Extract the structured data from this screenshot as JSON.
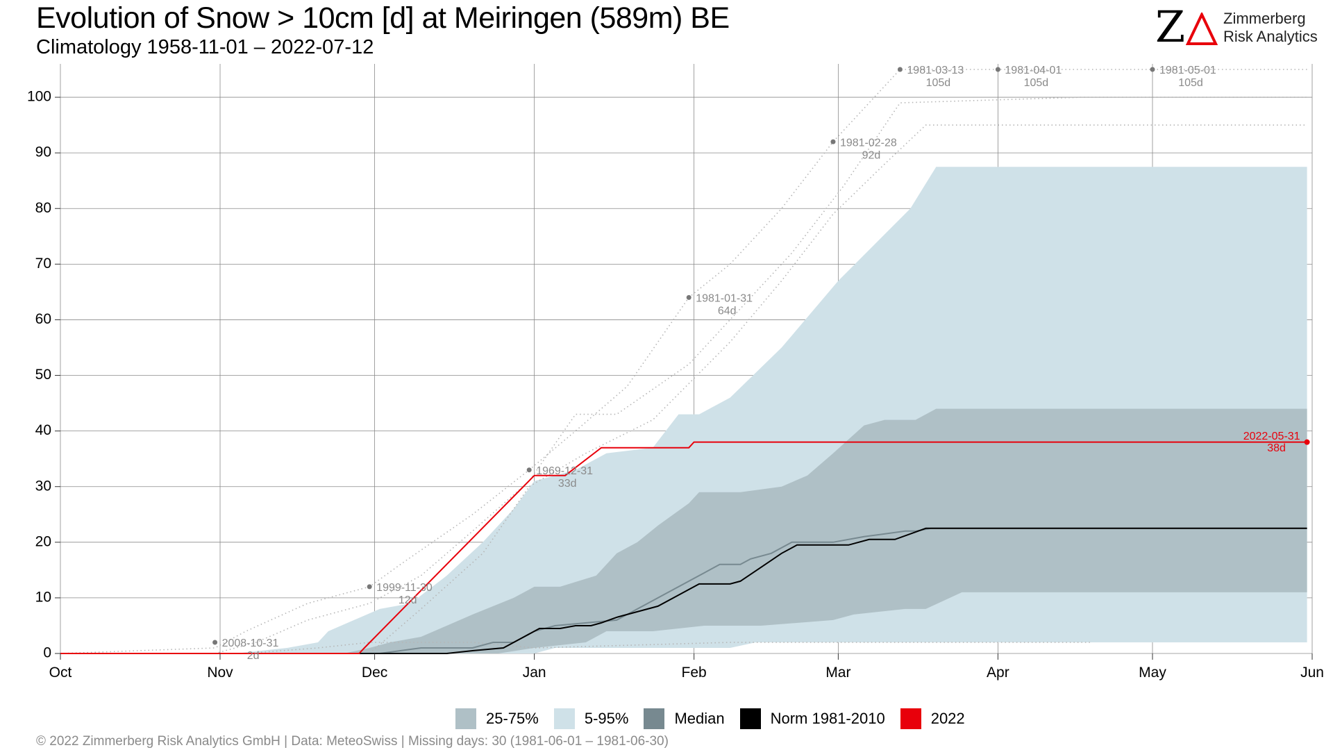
{
  "header": {
    "title": "Evolution of Snow > 10cm [d] at Meiringen (589m) BE",
    "subtitle": "Climatology 1958-11-01 – 2022-07-12"
  },
  "logo": {
    "line1": "Zimmerberg",
    "line2": "Risk Analytics",
    "accent_color": "#e8000b"
  },
  "colors": {
    "band_5_95": "#cfe1e8",
    "band_25_75": "#afc0c6",
    "median": "#778990",
    "norm": "#000000",
    "year_2022": "#e8000b",
    "record": "#8a8a8a",
    "grid": "#8a8a8a"
  },
  "chart_data": {
    "type": "line",
    "title": "Evolution of Snow > 10cm [d] at Meiringen (589m) BE",
    "subtitle": "Climatology 1958-11-01 – 2022-07-12",
    "xlabel": "",
    "ylabel": "",
    "x_unit": "days since Oct 1",
    "xlim": [
      0,
      243
    ],
    "ylim": [
      0,
      106
    ],
    "x_ticks": [
      {
        "label": "Oct",
        "x": 0
      },
      {
        "label": "Nov",
        "x": 31
      },
      {
        "label": "Dec",
        "x": 61
      },
      {
        "label": "Jan",
        "x": 92
      },
      {
        "label": "Feb",
        "x": 123
      },
      {
        "label": "Mar",
        "x": 151
      },
      {
        "label": "Apr",
        "x": 182
      },
      {
        "label": "May",
        "x": 212
      },
      {
        "label": "Jun",
        "x": 243
      }
    ],
    "y_ticks": [
      0,
      10,
      20,
      30,
      40,
      50,
      60,
      70,
      80,
      90,
      100
    ],
    "grid": true,
    "legend_position": "bottom",
    "legend": [
      "25-75%",
      "5-95%",
      "Median",
      "Norm 1981-2010",
      "2022"
    ],
    "series": [
      {
        "name": "5-95%",
        "kind": "band",
        "upper": [
          [
            0,
            0
          ],
          [
            34,
            0
          ],
          [
            44,
            1
          ],
          [
            50,
            2
          ],
          [
            52,
            4
          ],
          [
            57,
            6
          ],
          [
            62,
            8
          ],
          [
            68,
            9
          ],
          [
            75,
            14
          ],
          [
            82,
            20
          ],
          [
            88,
            26
          ],
          [
            92,
            31
          ],
          [
            100,
            33
          ],
          [
            106,
            36
          ],
          [
            115,
            37
          ],
          [
            120,
            43
          ],
          [
            124,
            43
          ],
          [
            130,
            46
          ],
          [
            140,
            55
          ],
          [
            151,
            67
          ],
          [
            165,
            80
          ],
          [
            170,
            87.5
          ],
          [
            242,
            87.5
          ]
        ],
        "lower": [
          [
            0,
            0
          ],
          [
            92,
            0
          ],
          [
            96,
            1
          ],
          [
            110,
            1
          ],
          [
            115,
            1
          ],
          [
            130,
            1
          ],
          [
            135,
            2
          ],
          [
            145,
            2
          ],
          [
            150,
            2
          ],
          [
            242,
            2
          ]
        ]
      },
      {
        "name": "25-75%",
        "kind": "band",
        "upper": [
          [
            0,
            0
          ],
          [
            55,
            0
          ],
          [
            60,
            1
          ],
          [
            64,
            2
          ],
          [
            70,
            3
          ],
          [
            75,
            5
          ],
          [
            80,
            7
          ],
          [
            88,
            10
          ],
          [
            92,
            12
          ],
          [
            97,
            12
          ],
          [
            104,
            14
          ],
          [
            108,
            18
          ],
          [
            112,
            20
          ],
          [
            116,
            23
          ],
          [
            122,
            27
          ],
          [
            124,
            29
          ],
          [
            132,
            29
          ],
          [
            140,
            30
          ],
          [
            145,
            32
          ],
          [
            150,
            36
          ],
          [
            156,
            41
          ],
          [
            160,
            42
          ],
          [
            166,
            42
          ],
          [
            170,
            44
          ],
          [
            242,
            44
          ]
        ],
        "lower": [
          [
            0,
            0
          ],
          [
            85,
            0
          ],
          [
            92,
            1
          ],
          [
            102,
            2
          ],
          [
            106,
            4
          ],
          [
            115,
            4
          ],
          [
            125,
            5
          ],
          [
            136,
            5
          ],
          [
            150,
            6
          ],
          [
            154,
            7
          ],
          [
            164,
            8
          ],
          [
            168,
            8
          ],
          [
            175,
            11
          ],
          [
            242,
            11
          ]
        ]
      },
      {
        "name": "Median",
        "kind": "line",
        "points": [
          [
            0,
            0
          ],
          [
            62,
            0
          ],
          [
            70,
            1
          ],
          [
            80,
            1
          ],
          [
            84,
            2
          ],
          [
            88,
            2
          ],
          [
            92,
            4
          ],
          [
            96,
            5
          ],
          [
            108,
            6
          ],
          [
            114,
            9
          ],
          [
            118,
            11
          ],
          [
            124,
            14
          ],
          [
            128,
            16
          ],
          [
            132,
            16
          ],
          [
            134,
            17
          ],
          [
            138,
            18
          ],
          [
            142,
            20
          ],
          [
            150,
            20
          ],
          [
            156,
            21
          ],
          [
            164,
            22
          ],
          [
            166,
            22
          ],
          [
            169,
            22.5
          ],
          [
            242,
            22.5
          ]
        ]
      },
      {
        "name": "Norm 1981-2010",
        "kind": "line",
        "points": [
          [
            0,
            0
          ],
          [
            75,
            0
          ],
          [
            80,
            0.5
          ],
          [
            86,
            1
          ],
          [
            90,
            3
          ],
          [
            93,
            4.5
          ],
          [
            97,
            4.5
          ],
          [
            100,
            5
          ],
          [
            103,
            5
          ],
          [
            105,
            5.5
          ],
          [
            108,
            6.5
          ],
          [
            112,
            7.5
          ],
          [
            116,
            8.5
          ],
          [
            120,
            10.5
          ],
          [
            124,
            12.5
          ],
          [
            130,
            12.5
          ],
          [
            132,
            13
          ],
          [
            136,
            15.5
          ],
          [
            140,
            18
          ],
          [
            143,
            19.5
          ],
          [
            153,
            19.5
          ],
          [
            157,
            20.5
          ],
          [
            162,
            20.5
          ],
          [
            168,
            22.5
          ],
          [
            242,
            22.5
          ]
        ]
      },
      {
        "name": "2022",
        "kind": "line",
        "points": [
          [
            0,
            0
          ],
          [
            58,
            0
          ],
          [
            59,
            1
          ],
          [
            92,
            32
          ],
          [
            98,
            32
          ],
          [
            105,
            37
          ],
          [
            122,
            37
          ],
          [
            123,
            38
          ],
          [
            242,
            38
          ]
        ]
      }
    ],
    "records": [
      {
        "x": 30,
        "y": 2,
        "date": "2008-10-31",
        "value_label": "2d"
      },
      {
        "x": 60,
        "y": 12,
        "date": "1999-11-30",
        "value_label": "12d"
      },
      {
        "x": 91,
        "y": 33,
        "date": "1969-12-31",
        "value_label": "33d"
      },
      {
        "x": 122,
        "y": 64,
        "date": "1981-01-31",
        "value_label": "64d"
      },
      {
        "x": 150,
        "y": 92,
        "date": "1981-02-28",
        "value_label": "92d"
      },
      {
        "x": 163,
        "y": 105,
        "date": "1981-03-13",
        "value_label": "105d"
      },
      {
        "x": 182,
        "y": 105,
        "date": "1981-04-01",
        "value_label": "105d"
      },
      {
        "x": 212,
        "y": 105,
        "date": "1981-05-01",
        "value_label": "105d"
      }
    ],
    "record_envelopes": [
      [
        [
          0,
          0
        ],
        [
          30,
          1
        ],
        [
          36,
          4
        ],
        [
          48,
          9
        ],
        [
          60,
          12
        ],
        [
          66,
          16
        ],
        [
          80,
          25
        ],
        [
          91,
          33
        ],
        [
          100,
          40
        ],
        [
          110,
          48
        ],
        [
          122,
          64
        ],
        [
          130,
          70
        ],
        [
          140,
          80
        ],
        [
          150,
          92
        ],
        [
          163,
          105
        ],
        [
          242,
          105
        ]
      ],
      [
        [
          30,
          0
        ],
        [
          38,
          2
        ],
        [
          48,
          6
        ],
        [
          60,
          9
        ],
        [
          70,
          14
        ],
        [
          80,
          22
        ],
        [
          91,
          31
        ],
        [
          100,
          43
        ],
        [
          108,
          43
        ],
        [
          122,
          52
        ],
        [
          132,
          62
        ],
        [
          142,
          72
        ],
        [
          152,
          84
        ],
        [
          163,
          99
        ],
        [
          198,
          100
        ],
        [
          242,
          100
        ]
      ],
      [
        [
          60,
          0
        ],
        [
          70,
          8
        ],
        [
          82,
          18
        ],
        [
          91,
          30
        ],
        [
          102,
          36
        ],
        [
          115,
          42
        ],
        [
          130,
          56
        ],
        [
          140,
          67
        ],
        [
          150,
          79
        ],
        [
          160,
          88
        ],
        [
          168,
          95
        ],
        [
          242,
          95
        ]
      ],
      [
        [
          36,
          0
        ],
        [
          50,
          1
        ],
        [
          60,
          2
        ],
        [
          80,
          2
        ],
        [
          92,
          1
        ],
        [
          130,
          2
        ],
        [
          150,
          2
        ],
        [
          200,
          2
        ]
      ]
    ],
    "end_label": {
      "x": 242,
      "y": 38,
      "date": "2022-05-31",
      "value_label": "38d"
    }
  },
  "legend": {
    "items": [
      {
        "label": "25-75%",
        "color": "#afc0c6"
      },
      {
        "label": "5-95%",
        "color": "#cfe1e8"
      },
      {
        "label": "Median",
        "color": "#778990"
      },
      {
        "label": "Norm 1981-2010",
        "color": "#000000"
      },
      {
        "label": "2022",
        "color": "#e8000b"
      }
    ]
  },
  "footer": "©  2022 Zimmerberg Risk Analytics GmbH | Data: MeteoSwiss | Missing days: 30 (1981-06-01 – 1981-06-30)"
}
